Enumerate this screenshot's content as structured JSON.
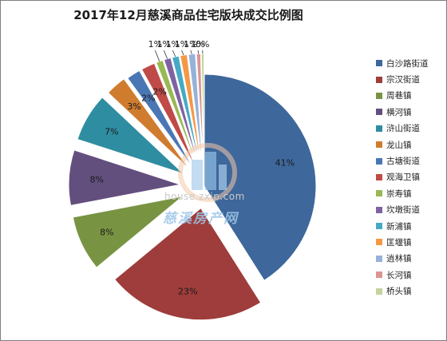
{
  "chart_data": {
    "type": "pie",
    "title": "2017年12月慈溪商品住宅版块成交比例图",
    "slices": [
      {
        "label": "白沙路街道",
        "value": 41,
        "display": "41%",
        "color": "#3e679b"
      },
      {
        "label": "宗汉街道",
        "value": 23,
        "display": "23%",
        "color": "#9e3d3b"
      },
      {
        "label": "周巷镇",
        "value": 8,
        "display": "8%",
        "color": "#789443"
      },
      {
        "label": "横河镇",
        "value": 8,
        "display": "8%",
        "color": "#634f7e"
      },
      {
        "label": "浒山街道",
        "value": 7,
        "display": "7%",
        "color": "#2f8da1"
      },
      {
        "label": "龙山镇",
        "value": 3,
        "display": "3%",
        "color": "#d07c2f"
      },
      {
        "label": "古塘街道",
        "value": 2,
        "display": "2%",
        "color": "#4a76b4"
      },
      {
        "label": "观海卫镇",
        "value": 2,
        "display": "2%",
        "color": "#c04a47"
      },
      {
        "label": "崇寿镇",
        "value": 1,
        "display": "1%",
        "color": "#99b955"
      },
      {
        "label": "坎墩街道",
        "value": 1,
        "display": "1%",
        "color": "#7e62a2"
      },
      {
        "label": "新浦镇",
        "value": 1,
        "display": "1%",
        "color": "#46aac4"
      },
      {
        "label": "匡堰镇",
        "value": 1,
        "display": "1%",
        "color": "#f59845"
      },
      {
        "label": "逍林镇",
        "value": 1,
        "display": "1%",
        "color": "#95b2d9"
      },
      {
        "label": "长河镇",
        "value": 0.6,
        "display": "1%",
        "color": "#d99594"
      },
      {
        "label": "桥头镇",
        "value": 0.4,
        "display": "0%",
        "color": "#c3d59e"
      }
    ],
    "legend_position": "right"
  },
  "watermark": {
    "url": "house.zxip.com",
    "brand": "慈溪房产网"
  }
}
